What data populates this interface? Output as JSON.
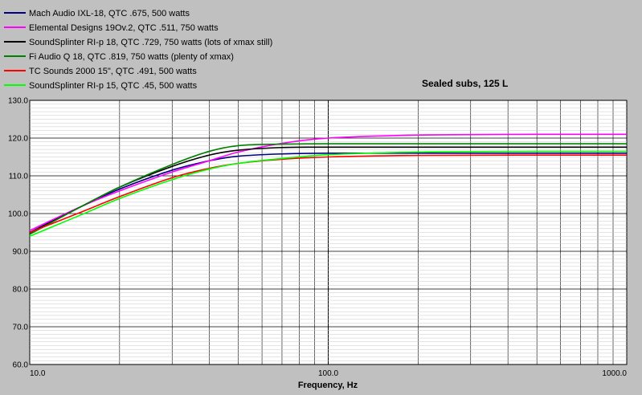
{
  "chart_data": {
    "type": "line",
    "title": "Sealed subs, 125 L",
    "xlabel": "Frequency, Hz",
    "ylabel": "",
    "x_scale": "log",
    "xlim": [
      10,
      1000
    ],
    "ylim": [
      60,
      130
    ],
    "x_ticks": [
      "10.0",
      "100.0",
      "1000.0"
    ],
    "y_ticks": [
      "60.0",
      "70.0",
      "80.0",
      "90.0",
      "100.0",
      "110.0",
      "120.0",
      "130.0"
    ],
    "grid": true,
    "legend_position": "top-left",
    "x": [
      10,
      15,
      20,
      30,
      40,
      50,
      70,
      100,
      200,
      500,
      1000
    ],
    "series": [
      {
        "name": "Mach Audio IXL-18, QTC .675, 500 watts",
        "color": "#000080",
        "values": [
          95.0,
          102.0,
          106.5,
          111.5,
          114.0,
          115.2,
          115.8,
          116.0,
          116.0,
          116.0,
          116.0
        ]
      },
      {
        "name": "Elemental Designs 19Ov.2, QTC .511, 750 watts",
        "color": "#ff00ff",
        "values": [
          95.5,
          102.0,
          106.0,
          111.0,
          114.0,
          116.3,
          118.6,
          120.0,
          120.8,
          121.0,
          121.0
        ]
      },
      {
        "name": "SoundSplinter RI-p 18, QTC .729, 750 watts (lots of xmax still)",
        "color": "#000000",
        "values": [
          94.8,
          102.0,
          107.0,
          112.5,
          115.5,
          116.8,
          117.5,
          117.6,
          117.6,
          117.6,
          117.6
        ]
      },
      {
        "name": "Fi Audio Q 18, QTC .819, 750 watts (plenty of xmax)",
        "color": "#008000",
        "values": [
          94.5,
          102.0,
          107.0,
          113.0,
          116.5,
          118.0,
          118.4,
          118.5,
          118.5,
          118.5,
          118.5
        ]
      },
      {
        "name": "TC Sounds 2000 15\", QTC .491, 500 watts",
        "color": "#ff0000",
        "values": [
          95.0,
          100.5,
          104.5,
          109.5,
          112.0,
          113.3,
          114.4,
          115.0,
          115.4,
          115.5,
          115.5
        ]
      },
      {
        "name": "SoundSplinter RI-p 15, QTC .45, 500 watts",
        "color": "#00ff00",
        "values": [
          94.0,
          99.8,
          104.0,
          109.0,
          111.8,
          113.3,
          114.6,
          115.6,
          116.3,
          116.5,
          116.5
        ]
      }
    ]
  }
}
